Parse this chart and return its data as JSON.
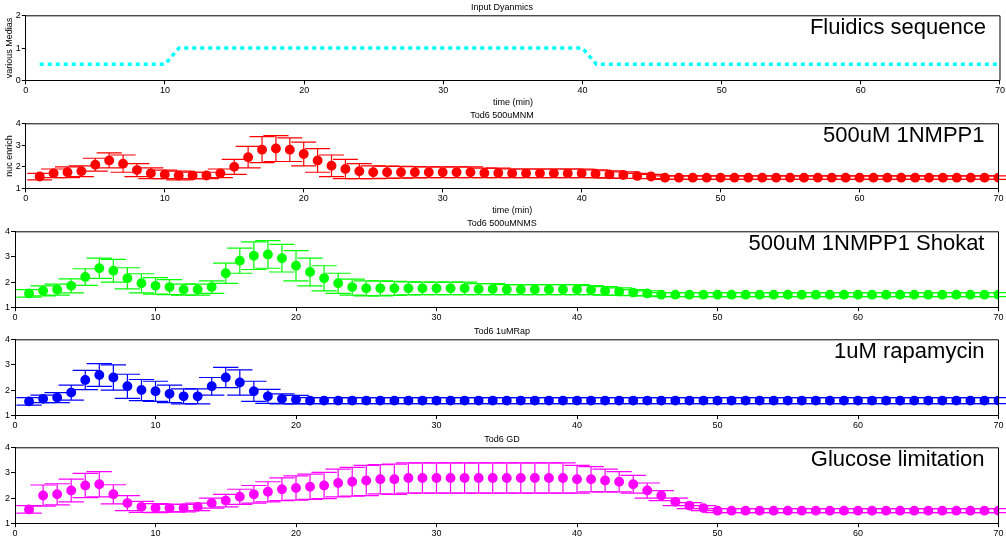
{
  "chart_data": [
    {
      "type": "line",
      "title": "Input Dyanmics",
      "xlabel": "time (min)",
      "ylabel": "various Medias",
      "annotations": [
        "Fluidics sequence"
      ],
      "x": [
        1,
        10,
        11,
        40,
        41,
        70
      ],
      "series": [
        {
          "color": "#00ffff",
          "values": [
            0.5,
            0.5,
            1,
            1,
            0.5,
            0.5
          ]
        }
      ],
      "xlim": [
        0,
        70
      ],
      "xticks": [
        0,
        10,
        20,
        30,
        40,
        50,
        60,
        70
      ],
      "ylim": [
        0,
        2
      ],
      "yticks": [
        0,
        1,
        2
      ],
      "grid": false,
      "legend": false,
      "marker": "none",
      "line_style": "dotted"
    },
    {
      "type": "scatter",
      "title": "Tod6 500uMNM",
      "xlabel": "time (min)",
      "ylabel": "nuc enrich",
      "annotations": [
        "500uM 1NMPP1"
      ],
      "x": [
        1,
        2,
        3,
        4,
        5,
        6,
        7,
        8,
        9,
        10,
        11,
        12,
        13,
        14,
        15,
        16,
        17,
        18,
        19,
        20,
        21,
        22,
        23,
        24,
        25,
        26,
        27,
        28,
        29,
        30,
        31,
        32,
        33,
        34,
        35,
        36,
        37,
        38,
        39,
        40,
        41,
        42,
        43,
        44,
        45,
        46,
        47,
        48,
        49,
        50,
        51,
        52,
        53,
        54,
        55,
        56,
        57,
        58,
        59,
        60,
        61,
        62,
        63,
        64,
        65,
        66,
        67,
        68,
        69,
        70
      ],
      "series": [
        {
          "color": "#ff0000",
          "values": [
            1.55,
            1.7,
            1.75,
            1.8,
            2.1,
            2.3,
            2.15,
            1.85,
            1.7,
            1.65,
            1.6,
            1.6,
            1.6,
            1.7,
            2.0,
            2.45,
            2.8,
            2.85,
            2.8,
            2.6,
            2.3,
            2.05,
            1.9,
            1.8,
            1.75,
            1.75,
            1.75,
            1.75,
            1.75,
            1.75,
            1.75,
            1.75,
            1.72,
            1.72,
            1.7,
            1.7,
            1.7,
            1.7,
            1.7,
            1.7,
            1.68,
            1.65,
            1.62,
            1.58,
            1.55,
            1.5,
            1.5,
            1.5,
            1.5,
            1.5,
            1.5,
            1.5,
            1.5,
            1.5,
            1.5,
            1.5,
            1.5,
            1.5,
            1.5,
            1.5,
            1.5,
            1.5,
            1.5,
            1.5,
            1.5,
            1.5,
            1.5,
            1.5,
            1.5,
            1.5
          ],
          "errors": [
            0.15,
            0.2,
            0.25,
            0.25,
            0.3,
            0.35,
            0.4,
            0.3,
            0.25,
            0.2,
            0.2,
            0.15,
            0.15,
            0.2,
            0.35,
            0.5,
            0.6,
            0.6,
            0.55,
            0.55,
            0.55,
            0.5,
            0.45,
            0.35,
            0.3,
            0.28,
            0.27,
            0.26,
            0.25,
            0.25,
            0.25,
            0.25,
            0.22,
            0.22,
            0.2,
            0.2,
            0.2,
            0.2,
            0.2,
            0.2,
            0.18,
            0.17,
            0.15,
            0.12,
            0.1,
            0.08,
            0.08,
            0.08,
            0.08,
            0.08,
            0.08,
            0.08,
            0.08,
            0.08,
            0.08,
            0.08,
            0.08,
            0.08,
            0.08,
            0.08,
            0.08,
            0.08,
            0.08,
            0.08,
            0.08,
            0.08,
            0.08,
            0.08,
            0.08,
            0.08
          ]
        }
      ],
      "xlim": [
        0,
        70
      ],
      "xticks": [
        0,
        10,
        20,
        30,
        40,
        50,
        60,
        70
      ],
      "ylim": [
        1,
        4
      ],
      "yticks": [
        1,
        2,
        3,
        4
      ],
      "grid": false,
      "legend": false,
      "marker": "circle"
    },
    {
      "type": "scatter",
      "title": "Tod6 500uMNMS",
      "annotations": [
        "500uM 1NMPP1 Shokat"
      ],
      "x": [
        1,
        2,
        3,
        4,
        5,
        6,
        7,
        8,
        9,
        10,
        11,
        12,
        13,
        14,
        15,
        16,
        17,
        18,
        19,
        20,
        21,
        22,
        23,
        24,
        25,
        26,
        27,
        28,
        29,
        30,
        31,
        32,
        33,
        34,
        35,
        36,
        37,
        38,
        39,
        40,
        41,
        42,
        43,
        44,
        45,
        46,
        47,
        48,
        49,
        50,
        51,
        52,
        53,
        54,
        55,
        56,
        57,
        58,
        59,
        60,
        61,
        62,
        63,
        64,
        65,
        66,
        67,
        68,
        69,
        70
      ],
      "series": [
        {
          "color": "#00ff00",
          "values": [
            1.55,
            1.65,
            1.7,
            1.85,
            2.2,
            2.55,
            2.45,
            2.15,
            1.95,
            1.85,
            1.8,
            1.7,
            1.7,
            1.8,
            2.35,
            2.85,
            3.05,
            3.1,
            2.95,
            2.65,
            2.4,
            2.15,
            1.95,
            1.8,
            1.75,
            1.75,
            1.75,
            1.75,
            1.75,
            1.75,
            1.75,
            1.75,
            1.72,
            1.72,
            1.7,
            1.7,
            1.7,
            1.7,
            1.7,
            1.7,
            1.68,
            1.65,
            1.62,
            1.58,
            1.55,
            1.5,
            1.5,
            1.5,
            1.5,
            1.5,
            1.5,
            1.5,
            1.5,
            1.5,
            1.5,
            1.5,
            1.5,
            1.5,
            1.5,
            1.5,
            1.5,
            1.5,
            1.5,
            1.5,
            1.5,
            1.5,
            1.5,
            1.5,
            1.5,
            1.5
          ],
          "errors": [
            0.15,
            0.2,
            0.22,
            0.28,
            0.33,
            0.4,
            0.45,
            0.42,
            0.38,
            0.33,
            0.3,
            0.22,
            0.22,
            0.25,
            0.4,
            0.5,
            0.55,
            0.55,
            0.55,
            0.6,
            0.55,
            0.5,
            0.4,
            0.32,
            0.3,
            0.3,
            0.28,
            0.26,
            0.25,
            0.25,
            0.25,
            0.25,
            0.22,
            0.22,
            0.2,
            0.2,
            0.2,
            0.2,
            0.2,
            0.2,
            0.18,
            0.17,
            0.15,
            0.12,
            0.1,
            0.08,
            0.08,
            0.08,
            0.08,
            0.08,
            0.08,
            0.08,
            0.08,
            0.08,
            0.08,
            0.08,
            0.08,
            0.08,
            0.08,
            0.08,
            0.08,
            0.08,
            0.08,
            0.08,
            0.08,
            0.08,
            0.08,
            0.08,
            0.08,
            0.08
          ]
        }
      ],
      "xlim": [
        0,
        70
      ],
      "xticks": [
        0,
        10,
        20,
        30,
        40,
        50,
        60,
        70
      ],
      "ylim": [
        1,
        4
      ],
      "yticks": [
        1,
        2,
        3,
        4
      ],
      "grid": false,
      "legend": false,
      "marker": "circle"
    },
    {
      "type": "scatter",
      "title": "Tod6 1uMRap",
      "annotations": [
        "1uM rapamycin"
      ],
      "x": [
        1,
        2,
        3,
        4,
        5,
        6,
        7,
        8,
        9,
        10,
        11,
        12,
        13,
        14,
        15,
        16,
        17,
        18,
        19,
        20,
        21,
        22,
        23,
        24,
        25,
        26,
        27,
        28,
        29,
        30,
        31,
        32,
        33,
        34,
        35,
        36,
        37,
        38,
        39,
        40,
        41,
        42,
        43,
        44,
        45,
        46,
        47,
        48,
        49,
        50,
        51,
        52,
        53,
        54,
        55,
        56,
        57,
        58,
        59,
        60,
        61,
        62,
        63,
        64,
        65,
        66,
        67,
        68,
        69,
        70
      ],
      "series": [
        {
          "color": "#0000ff",
          "values": [
            1.55,
            1.65,
            1.7,
            1.9,
            2.4,
            2.6,
            2.5,
            2.15,
            2.0,
            1.95,
            1.85,
            1.75,
            1.75,
            2.15,
            2.5,
            2.3,
            1.95,
            1.75,
            1.65,
            1.62,
            1.58,
            1.58,
            1.58,
            1.58,
            1.58,
            1.58,
            1.58,
            1.58,
            1.58,
            1.58,
            1.58,
            1.58,
            1.58,
            1.58,
            1.58,
            1.58,
            1.58,
            1.58,
            1.58,
            1.58,
            1.58,
            1.58,
            1.58,
            1.58,
            1.58,
            1.58,
            1.58,
            1.58,
            1.58,
            1.58,
            1.58,
            1.58,
            1.58,
            1.58,
            1.58,
            1.58,
            1.58,
            1.58,
            1.58,
            1.58,
            1.58,
            1.58,
            1.58,
            1.58,
            1.58,
            1.58,
            1.58,
            1.58,
            1.58,
            1.58
          ],
          "errors": [
            0.15,
            0.15,
            0.2,
            0.3,
            0.38,
            0.45,
            0.5,
            0.48,
            0.42,
            0.4,
            0.35,
            0.3,
            0.3,
            0.35,
            0.4,
            0.5,
            0.4,
            0.28,
            0.2,
            0.17,
            0.12,
            0.12,
            0.12,
            0.12,
            0.12,
            0.12,
            0.12,
            0.12,
            0.12,
            0.12,
            0.12,
            0.12,
            0.12,
            0.12,
            0.12,
            0.12,
            0.12,
            0.12,
            0.12,
            0.12,
            0.12,
            0.12,
            0.12,
            0.12,
            0.12,
            0.12,
            0.12,
            0.12,
            0.12,
            0.12,
            0.12,
            0.12,
            0.12,
            0.12,
            0.12,
            0.12,
            0.12,
            0.12,
            0.12,
            0.12,
            0.12,
            0.12,
            0.12,
            0.12,
            0.12,
            0.12,
            0.12,
            0.12,
            0.12,
            0.12
          ]
        }
      ],
      "xlim": [
        0,
        70
      ],
      "xticks": [
        0,
        10,
        20,
        30,
        40,
        50,
        60,
        70
      ],
      "ylim": [
        1,
        4
      ],
      "yticks": [
        1,
        2,
        3,
        4
      ],
      "grid": false,
      "legend": false,
      "marker": "circle"
    },
    {
      "type": "scatter",
      "title": "Tod6 GD",
      "annotations": [
        "Glucose limitation"
      ],
      "x": [
        1,
        2,
        3,
        4,
        5,
        6,
        7,
        8,
        9,
        10,
        11,
        12,
        13,
        14,
        15,
        16,
        17,
        18,
        19,
        20,
        21,
        22,
        23,
        24,
        25,
        26,
        27,
        28,
        29,
        30,
        31,
        32,
        33,
        34,
        35,
        36,
        37,
        38,
        39,
        40,
        41,
        42,
        43,
        44,
        45,
        46,
        47,
        48,
        49,
        50,
        51,
        52,
        53,
        54,
        55,
        56,
        57,
        58,
        59,
        60,
        61,
        62,
        63,
        64,
        65,
        66,
        67,
        68,
        69,
        70
      ],
      "series": [
        {
          "color": "#ff00ff",
          "values": [
            1.55,
            2.1,
            2.15,
            2.3,
            2.5,
            2.55,
            2.15,
            1.8,
            1.65,
            1.6,
            1.6,
            1.6,
            1.65,
            1.8,
            1.9,
            2.05,
            2.15,
            2.25,
            2.35,
            2.4,
            2.45,
            2.5,
            2.6,
            2.65,
            2.7,
            2.75,
            2.75,
            2.8,
            2.8,
            2.8,
            2.8,
            2.8,
            2.8,
            2.8,
            2.8,
            2.8,
            2.8,
            2.8,
            2.8,
            2.75,
            2.75,
            2.7,
            2.65,
            2.55,
            2.3,
            2.1,
            1.85,
            1.7,
            1.6,
            1.5,
            1.5,
            1.5,
            1.5,
            1.5,
            1.5,
            1.5,
            1.5,
            1.5,
            1.5,
            1.5,
            1.5,
            1.5,
            1.5,
            1.5,
            1.5,
            1.5,
            1.5,
            1.5,
            1.5,
            1.5
          ],
          "errors": [
            0.15,
            0.42,
            0.42,
            0.45,
            0.48,
            0.5,
            0.38,
            0.3,
            0.22,
            0.18,
            0.15,
            0.15,
            0.15,
            0.2,
            0.25,
            0.3,
            0.35,
            0.4,
            0.45,
            0.48,
            0.5,
            0.52,
            0.55,
            0.57,
            0.6,
            0.58,
            0.6,
            0.6,
            0.6,
            0.6,
            0.6,
            0.6,
            0.6,
            0.6,
            0.6,
            0.6,
            0.6,
            0.6,
            0.6,
            0.55,
            0.5,
            0.45,
            0.4,
            0.35,
            0.3,
            0.2,
            0.15,
            0.12,
            0.1,
            0.08,
            0.08,
            0.08,
            0.08,
            0.08,
            0.08,
            0.08,
            0.08,
            0.08,
            0.08,
            0.08,
            0.08,
            0.08,
            0.08,
            0.08,
            0.08,
            0.08,
            0.08,
            0.08,
            0.08,
            0.08
          ]
        }
      ],
      "xlim": [
        0,
        70
      ],
      "xticks": [
        0,
        10,
        20,
        30,
        40,
        50,
        60,
        70
      ],
      "ylim": [
        1,
        4
      ],
      "yticks": [
        1,
        2,
        3,
        4
      ],
      "grid": false,
      "legend": false,
      "marker": "circle"
    }
  ]
}
